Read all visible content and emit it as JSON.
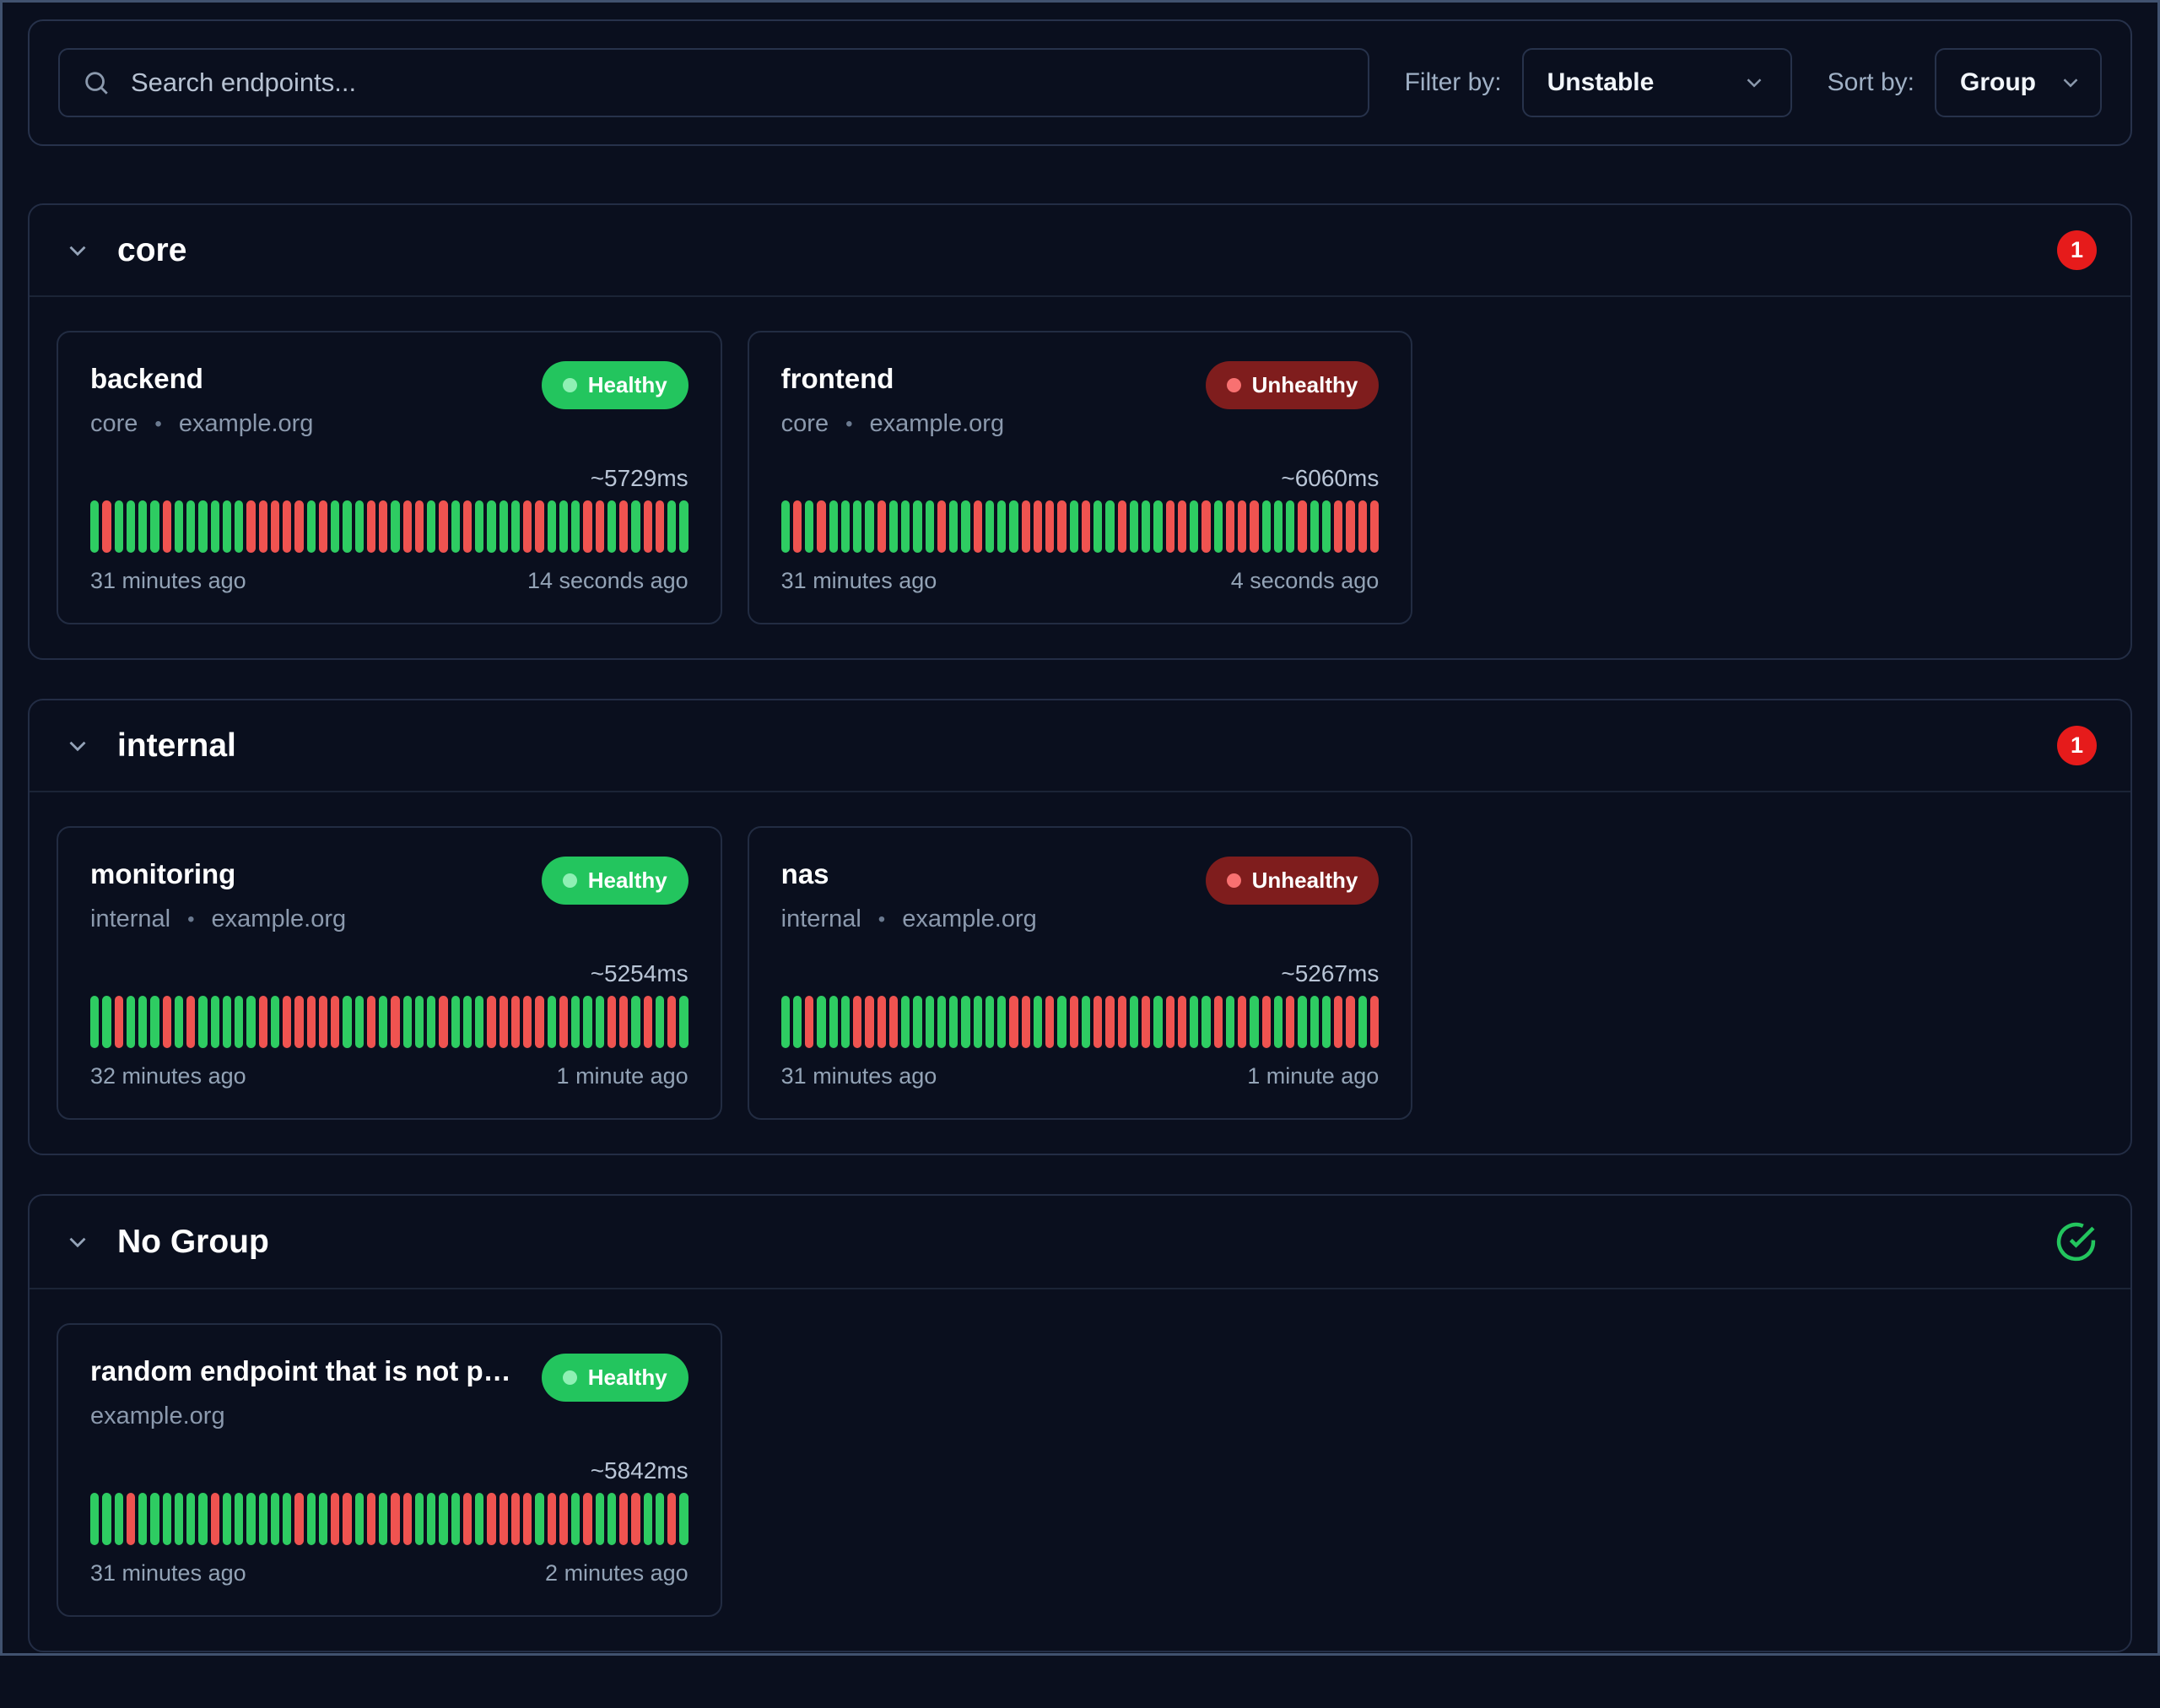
{
  "toolbar": {
    "search_placeholder": "Search endpoints...",
    "filter_label": "Filter by:",
    "filter_value": "Unstable",
    "sort_label": "Sort by:",
    "sort_value": "Group"
  },
  "meta_separator": "•",
  "colors": {
    "healthy": "#23c55e",
    "healthy-dot": "#8ff0b4",
    "unhealthy": "#7f1d1d",
    "unhealthy-dot": "#f87171",
    "bar-green": "#2ecc62",
    "bar-red": "#ef5350",
    "count-badge": "#e61b1b"
  },
  "groups": [
    {
      "name": "core",
      "badge": {
        "type": "count",
        "value": "1"
      },
      "endpoints": [
        {
          "name": "backend",
          "status": "Healthy",
          "healthy": true,
          "meta": [
            "core",
            "example.org"
          ],
          "response_time": "~5729ms",
          "oldest": "31 minutes ago",
          "newest": "14 seconds ago",
          "bars": "grggggrggggggrrrrrgrgggrrgrrgrgrggggrrgggrrgrgrrgg"
        },
        {
          "name": "frontend",
          "status": "Unhealthy",
          "healthy": false,
          "meta": [
            "core",
            "example.org"
          ],
          "response_time": "~6060ms",
          "oldest": "31 minutes ago",
          "newest": "4 seconds ago",
          "bars": "grgrggggrggggrggrgggrrrrgrggrgggrrgrgrrrgggrggrrrr"
        }
      ]
    },
    {
      "name": "internal",
      "badge": {
        "type": "count",
        "value": "1"
      },
      "endpoints": [
        {
          "name": "monitoring",
          "status": "Healthy",
          "healthy": true,
          "meta": [
            "internal",
            "example.org"
          ],
          "response_time": "~5254ms",
          "oldest": "32 minutes ago",
          "newest": "1 minute ago",
          "bars": "ggrgggrgrgggggrgrrrrrggrgrgggrgggrrrrrgrgggrrgrgrg"
        },
        {
          "name": "nas",
          "status": "Unhealthy",
          "healthy": false,
          "meta": [
            "internal",
            "example.org"
          ],
          "response_time": "~5267ms",
          "oldest": "31 minutes ago",
          "newest": "1 minute ago",
          "bars": "ggrgggrrrrgggggggggrrgrgrgrrrgrgrrggrgrgrgrgggrrgr"
        }
      ]
    },
    {
      "name": "No Group",
      "badge": {
        "type": "healthy-check"
      },
      "endpoints": [
        {
          "name": "random endpoint that is not part…",
          "status": "Healthy",
          "healthy": true,
          "meta": [
            "example.org"
          ],
          "response_time": "~5842ms",
          "oldest": "31 minutes ago",
          "newest": "2 minutes ago",
          "bars": "gggrggggggrggggggrggrrgrgrrggggrgrrrrgrrgrggrrggrg"
        }
      ]
    }
  ]
}
